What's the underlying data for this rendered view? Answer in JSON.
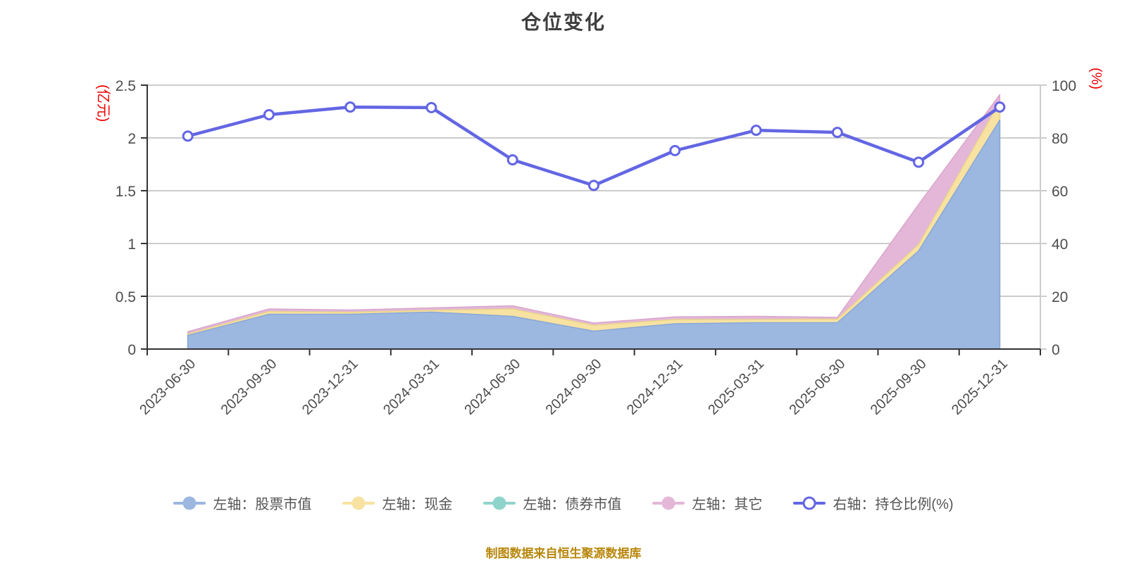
{
  "title": "仓位变化",
  "footer": "制图数据来自恒生聚源数据库",
  "colors": {
    "title": "#3f3f3f",
    "axis_line": "#333333",
    "right_axis_line": "#cccccc",
    "grid_line": "#cccccc",
    "tick_label": "#4d4d4d",
    "axis_name": "#ee0000",
    "legend_text": "#555555",
    "footer_text": "#b8860b",
    "stock": "#9cb7e0",
    "cash": "#f7e2a1",
    "bond": "#8fd4cb",
    "other": "#e4b7d8",
    "ratio_line": "#6366e3",
    "marker_fill": "#ffffff"
  },
  "area_borders": {
    "stock": "#89a8d6",
    "cash": "#eed58a",
    "bond": "#79c6bc",
    "other": "#d9a5cc"
  },
  "chart_data": {
    "type": "area",
    "title": "仓位变化",
    "grid": true,
    "legend_position": "bottom",
    "categories": [
      "2023-06-30",
      "2023-09-30",
      "2023-12-31",
      "2024-03-31",
      "2024-06-30",
      "2024-09-30",
      "2024-12-31",
      "2025-03-31",
      "2025-06-30",
      "2025-09-30",
      "2025-12-31"
    ],
    "left_axis": {
      "name": "(亿元)",
      "min": 0,
      "max": 2.5,
      "ticks": [
        "0",
        "0.5",
        "1",
        "1.5",
        "2",
        "2.5"
      ]
    },
    "right_axis": {
      "name": "(%)",
      "min": 0,
      "max": 100,
      "ticks": [
        "0",
        "20",
        "40",
        "60",
        "80",
        "100"
      ]
    },
    "series": [
      {
        "name": "左轴：股票市值",
        "axis": "left",
        "stack": true,
        "color_key": "stock",
        "values": [
          0.13,
          0.33,
          0.33,
          0.35,
          0.31,
          0.17,
          0.24,
          0.25,
          0.25,
          0.93,
          2.17
        ]
      },
      {
        "name": "左轴：现金",
        "axis": "left",
        "stack": true,
        "color_key": "cash",
        "values": [
          0.012,
          0.025,
          0.018,
          0.017,
          0.07,
          0.055,
          0.04,
          0.029,
          0.033,
          0.06,
          0.17
        ]
      },
      {
        "name": "左轴：债券市值",
        "axis": "left",
        "stack": true,
        "color_key": "bond",
        "values": [
          0,
          0,
          0,
          0,
          0,
          0,
          0,
          0,
          0,
          0,
          0
        ]
      },
      {
        "name": "左轴：其它",
        "axis": "left",
        "stack": true,
        "color_key": "other",
        "values": [
          0.022,
          0.025,
          0.022,
          0.023,
          0.03,
          0.022,
          0.025,
          0.031,
          0.017,
          0.38,
          0.07
        ]
      },
      {
        "name": "右轴：持仓比例(%)",
        "axis": "right",
        "stack": false,
        "type": "line",
        "color_key": "ratio_line",
        "values": [
          80.7,
          88.8,
          91.7,
          91.5,
          71.7,
          62.0,
          75.2,
          82.9,
          82.1,
          70.8,
          91.7
        ]
      }
    ]
  },
  "legend": {
    "items": [
      {
        "key": "stock",
        "label": "左轴：股票市值",
        "marker": "line-dot"
      },
      {
        "key": "cash",
        "label": "左轴：现金",
        "marker": "line-dot"
      },
      {
        "key": "bond",
        "label": "左轴：债券市值",
        "marker": "line-dot"
      },
      {
        "key": "other",
        "label": "左轴：其它",
        "marker": "line-dot"
      },
      {
        "key": "ratio_line",
        "label": "右轴：持仓比例(%)",
        "marker": "line-hollow-dot"
      }
    ]
  }
}
